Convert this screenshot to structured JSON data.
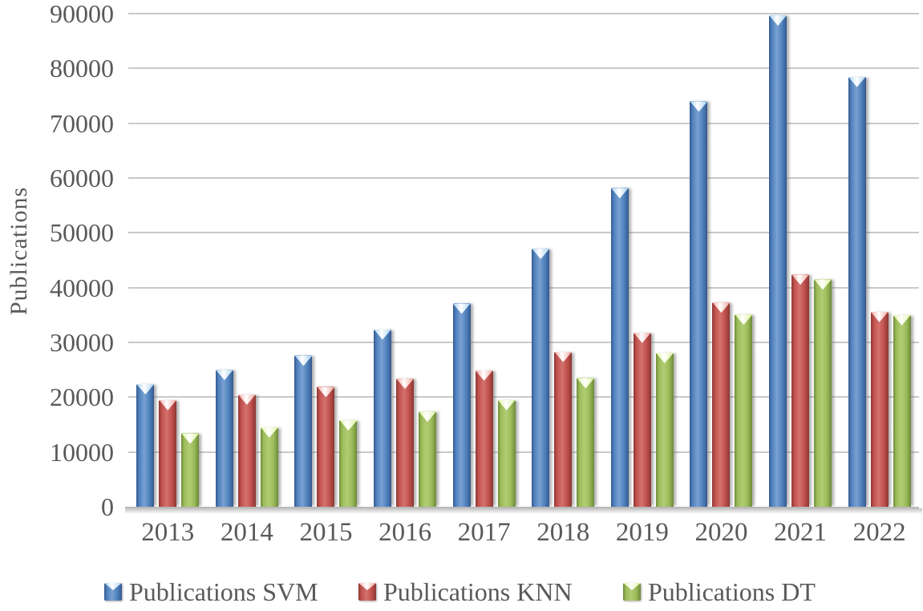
{
  "chart_data": {
    "type": "bar",
    "title": "",
    "xlabel": "",
    "ylabel": "Publications",
    "categories": [
      "2013",
      "2014",
      "2015",
      "2016",
      "2017",
      "2018",
      "2019",
      "2020",
      "2021",
      "2022"
    ],
    "series": [
      {
        "name": "Publications SVM",
        "values": [
          22400,
          25000,
          27600,
          32400,
          37100,
          47100,
          58200,
          74000,
          89700,
          78500
        ],
        "colors": {
          "fill": "#4F81BD",
          "edge": "#35598F",
          "mid": "#7AA1D2",
          "cap": "#A9D2F0"
        }
      },
      {
        "name": "Publications KNN",
        "values": [
          19500,
          20500,
          21900,
          23400,
          24900,
          28300,
          31800,
          37300,
          42400,
          35600
        ],
        "colors": {
          "fill": "#C0504D",
          "edge": "#8A3734",
          "mid": "#D4726E",
          "cap": "#F0A8A1"
        }
      },
      {
        "name": "Publications DT",
        "values": [
          13400,
          14500,
          15800,
          17400,
          19500,
          23500,
          28100,
          35100,
          41500,
          35000
        ],
        "colors": {
          "fill": "#9BBB59",
          "edge": "#6D8A39",
          "mid": "#B2CD74",
          "cap": "#DFF3A0"
        }
      }
    ],
    "ylim": [
      0,
      90000
    ],
    "yticks": [
      0,
      10000,
      20000,
      30000,
      40000,
      50000,
      60000,
      70000,
      80000,
      90000
    ],
    "grid": true,
    "legend_position": "bottom",
    "axis_text_color": "#595959",
    "gridline_color": "#C9C9C9"
  }
}
